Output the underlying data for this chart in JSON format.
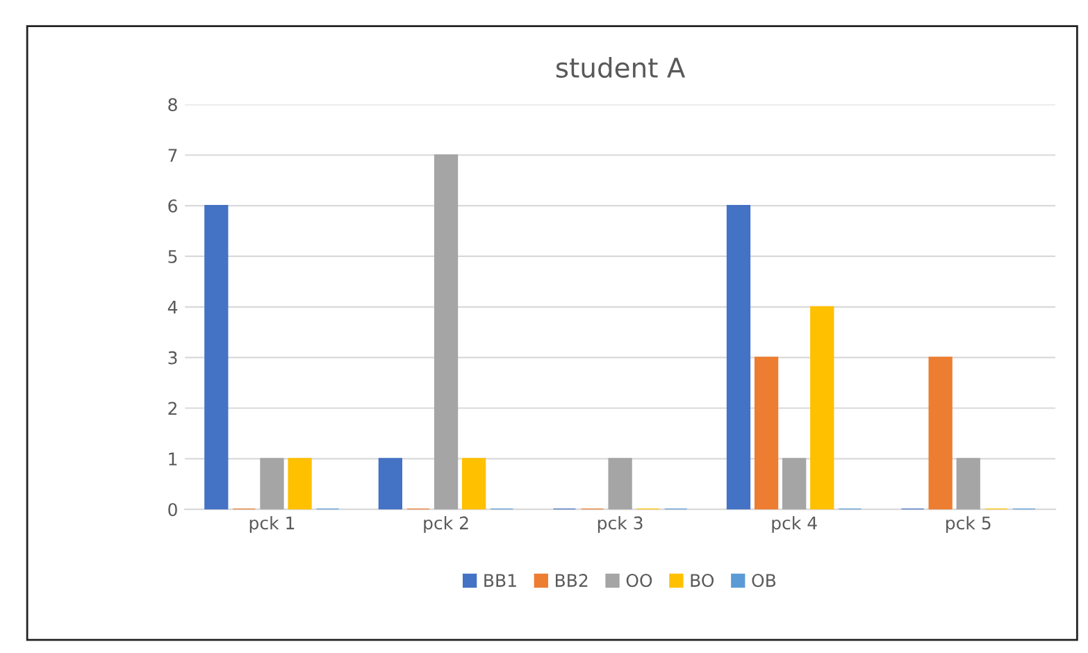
{
  "chart_data": {
    "type": "bar",
    "title": "student A",
    "categories": [
      "pck 1",
      "pck 2",
      "pck 3",
      "pck 4",
      "pck 5"
    ],
    "series": [
      {
        "name": "BB1",
        "color": "#4472c4",
        "values": [
          6,
          1,
          0,
          6,
          0
        ]
      },
      {
        "name": "BB2",
        "color": "#ed7d31",
        "values": [
          0,
          0,
          0,
          3,
          3
        ]
      },
      {
        "name": "OO",
        "color": "#a5a5a5",
        "values": [
          1,
          7,
          1,
          1,
          1
        ]
      },
      {
        "name": "BO",
        "color": "#ffc000",
        "values": [
          1,
          1,
          0,
          4,
          0
        ]
      },
      {
        "name": "OB",
        "color": "#5b9bd5",
        "values": [
          0,
          0,
          0,
          0,
          0
        ]
      }
    ],
    "ylim": [
      0,
      8
    ],
    "yticks": [
      0,
      1,
      2,
      3,
      4,
      5,
      6,
      7,
      8
    ],
    "grid": "y",
    "legend": "bottom"
  }
}
